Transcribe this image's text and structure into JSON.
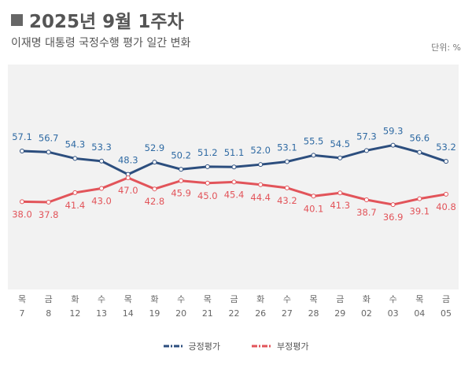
{
  "header": {
    "title": "2025년 9월 1주차",
    "subtitle": "이재명 대통령 국정수행 평가 일간 변화",
    "unit": "단위: %"
  },
  "chart_data": {
    "type": "line",
    "categories_day": [
      "목",
      "금",
      "화",
      "수",
      "목",
      "화",
      "수",
      "목",
      "금",
      "화",
      "수",
      "목",
      "금",
      "화",
      "수",
      "목",
      "금"
    ],
    "categories_date": [
      "7",
      "8",
      "12",
      "13",
      "14",
      "19",
      "20",
      "21",
      "22",
      "26",
      "27",
      "28",
      "29",
      "02",
      "03",
      "04",
      "05"
    ],
    "series": [
      {
        "name": "긍정평가",
        "color": "#2c4e7e",
        "label_color": "#2f6aa3",
        "values": [
          57.1,
          56.7,
          54.3,
          53.3,
          48.3,
          52.9,
          50.2,
          51.2,
          51.1,
          52.0,
          53.1,
          55.5,
          54.5,
          57.3,
          59.3,
          56.6,
          53.2
        ]
      },
      {
        "name": "부정평가",
        "color": "#e2545a",
        "label_color": "#e2545a",
        "values": [
          38.0,
          37.8,
          41.4,
          43.0,
          47.0,
          42.8,
          45.9,
          45.0,
          45.4,
          44.4,
          43.2,
          40.1,
          41.3,
          38.7,
          36.9,
          39.1,
          40.8
        ]
      }
    ],
    "legend": "bottom",
    "grid": false
  }
}
